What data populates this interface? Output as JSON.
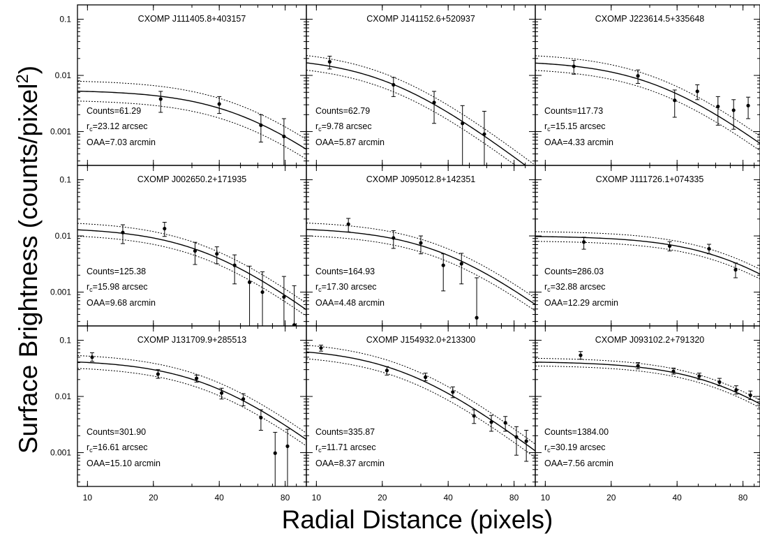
{
  "chart_data": {
    "type": "scatter",
    "ylabel": "Surface Brightness (counts/pixel",
    "ylabel_sup": "2",
    "ylabel_end": ")",
    "xlabel": "Radial Distance (pixels)",
    "x_scale": "log",
    "y_scale": "log",
    "xlim": [
      9,
      100
    ],
    "ylim": [
      0.00025,
      0.18
    ],
    "x_ticks": [
      10,
      20,
      40,
      80
    ],
    "x_tick_labels": [
      "10",
      "20",
      "40",
      "80"
    ],
    "y_ticks": [
      0.001,
      0.01,
      0.1
    ],
    "y_tick_labels": [
      "0.001",
      "0.01",
      "0.1"
    ],
    "layout": "3x3 grid",
    "panels": [
      {
        "title": "CXOMP J111405.8+403157",
        "counts_label": "Counts=61.29",
        "rc_prefix": "r",
        "rc_sub": "c",
        "rc_value": "=23.12 arcsec",
        "oaa_label": "OAA=7.03 arcmin",
        "model": {
          "s0": 0.0055,
          "rc": 50,
          "beta": 0.67,
          "band": 1.5
        },
        "points": [
          {
            "x": 21.6,
            "y": 0.0038,
            "lo": 0.0022,
            "hi": 0.0052
          },
          {
            "x": 40,
            "y": 0.0031,
            "lo": 0.0021,
            "hi": 0.0042
          },
          {
            "x": 62,
            "y": 0.0013,
            "lo": 0.00065,
            "hi": 0.002
          },
          {
            "x": 79,
            "y": 0.00082,
            "lo": 0.00025,
            "hi": 0.0017
          }
        ]
      },
      {
        "title": "CXOMP J141152.6+520937",
        "counts_label": "Counts=62.79",
        "rc_prefix": "r",
        "rc_sub": "c",
        "rc_value": "=9.78 arcsec",
        "oaa_label": "OAA=5.87 arcmin",
        "model": {
          "s0": 0.0215,
          "rc": 21.2,
          "beta": 0.67,
          "band": 1.35
        },
        "points": [
          {
            "x": 11.5,
            "y": 0.0175,
            "lo": 0.013,
            "hi": 0.022
          },
          {
            "x": 22.5,
            "y": 0.0068,
            "lo": 0.0042,
            "hi": 0.0092
          },
          {
            "x": 34.5,
            "y": 0.0033,
            "lo": 0.0014,
            "hi": 0.0052
          },
          {
            "x": 46.5,
            "y": 0.0014,
            "lo": 0.00025,
            "hi": 0.0029
          },
          {
            "x": 58.5,
            "y": 0.0009,
            "lo": 0.00025,
            "hi": 0.0023
          }
        ]
      },
      {
        "title": "CXOMP J223614.5+335648",
        "counts_label": "Counts=117.73",
        "rc_prefix": "r",
        "rc_sub": "c",
        "rc_value": "=15.15 arcsec",
        "oaa_label": "OAA=4.33 arcmin",
        "model": {
          "s0": 0.0185,
          "rc": 32.8,
          "beta": 0.67,
          "band": 1.35
        },
        "points": [
          {
            "x": 13.5,
            "y": 0.0145,
            "lo": 0.0105,
            "hi": 0.0185
          },
          {
            "x": 26.5,
            "y": 0.0098,
            "lo": 0.0072,
            "hi": 0.0125
          },
          {
            "x": 39,
            "y": 0.0036,
            "lo": 0.0018,
            "hi": 0.0055
          },
          {
            "x": 49.5,
            "y": 0.0052,
            "lo": 0.0037,
            "hi": 0.0068
          },
          {
            "x": 61.5,
            "y": 0.0028,
            "lo": 0.0013,
            "hi": 0.0042
          },
          {
            "x": 72.5,
            "y": 0.0024,
            "lo": 0.0011,
            "hi": 0.0037
          },
          {
            "x": 84.5,
            "y": 0.0029,
            "lo": 0.0017,
            "hi": 0.0041
          }
        ]
      },
      {
        "title": "CXOMP J002650.2+171935",
        "counts_label": "Counts=125.38",
        "rc_prefix": "r",
        "rc_sub": "c",
        "rc_value": "=15.98 arcsec",
        "oaa_label": "OAA=9.68 arcmin",
        "model": {
          "s0": 0.0142,
          "rc": 34.6,
          "beta": 0.67,
          "band": 1.3
        },
        "points": [
          {
            "x": 14.5,
            "y": 0.0115,
            "lo": 0.0073,
            "hi": 0.0158
          },
          {
            "x": 22.5,
            "y": 0.0135,
            "lo": 0.0098,
            "hi": 0.0175
          },
          {
            "x": 31,
            "y": 0.0054,
            "lo": 0.0031,
            "hi": 0.0077
          },
          {
            "x": 39,
            "y": 0.0048,
            "lo": 0.0032,
            "hi": 0.0064
          },
          {
            "x": 47,
            "y": 0.003,
            "lo": 0.0014,
            "hi": 0.0046
          },
          {
            "x": 55,
            "y": 0.0015,
            "lo": 0.00025,
            "hi": 0.0029
          },
          {
            "x": 63,
            "y": 0.001,
            "lo": 0.00025,
            "hi": 0.0023
          },
          {
            "x": 79,
            "y": 0.00082,
            "lo": 0.00025,
            "hi": 0.0019
          },
          {
            "x": 88,
            "y": 0.00026,
            "lo": 0.00025,
            "hi": 0.0013
          }
        ]
      },
      {
        "title": "CXOMP J095012.8+142351",
        "counts_label": "Counts=164.93",
        "rc_prefix": "r",
        "rc_sub": "c",
        "rc_value": "=17.30 arcsec",
        "oaa_label": "OAA=4.48 arcmin",
        "model": {
          "s0": 0.0142,
          "rc": 37.5,
          "beta": 0.67,
          "band": 1.3
        },
        "points": [
          {
            "x": 14,
            "y": 0.0162,
            "lo": 0.0118,
            "hi": 0.0205
          },
          {
            "x": 22.5,
            "y": 0.0092,
            "lo": 0.006,
            "hi": 0.0124
          },
          {
            "x": 30,
            "y": 0.0075,
            "lo": 0.0048,
            "hi": 0.01
          },
          {
            "x": 38,
            "y": 0.003,
            "lo": 0.00105,
            "hi": 0.0048
          },
          {
            "x": 46,
            "y": 0.0032,
            "lo": 0.0014,
            "hi": 0.0049
          },
          {
            "x": 54,
            "y": 0.00035,
            "lo": 0.00025,
            "hi": 0.0018
          }
        ]
      },
      {
        "title": "CXOMP J111726.1+074335",
        "counts_label": "Counts=286.03",
        "rc_prefix": "r",
        "rc_sub": "c",
        "rc_value": "=32.88 arcsec",
        "oaa_label": "OAA=12.29 arcmin",
        "model": {
          "s0": 0.01,
          "rc": 71,
          "beta": 0.67,
          "band": 1.22
        },
        "points": [
          {
            "x": 15,
            "y": 0.0078,
            "lo": 0.0058,
            "hi": 0.0095
          },
          {
            "x": 37,
            "y": 0.0066,
            "lo": 0.0054,
            "hi": 0.0079
          },
          {
            "x": 56,
            "y": 0.0059,
            "lo": 0.0048,
            "hi": 0.0071
          },
          {
            "x": 74,
            "y": 0.0025,
            "lo": 0.0018,
            "hi": 0.0033
          }
        ]
      },
      {
        "title": "CXOMP J131709.9+285513",
        "counts_label": "Counts=301.90",
        "rc_prefix": "r",
        "rc_sub": "c",
        "rc_value": "=16.61 arcsec",
        "oaa_label": "OAA=15.10 arcmin",
        "model": {
          "s0": 0.045,
          "rc": 36,
          "beta": 0.67,
          "band": 1.3
        },
        "points": [
          {
            "x": 10.5,
            "y": 0.05,
            "lo": 0.042,
            "hi": 0.06
          },
          {
            "x": 21,
            "y": 0.025,
            "lo": 0.021,
            "hi": 0.03
          },
          {
            "x": 31.5,
            "y": 0.021,
            "lo": 0.018,
            "hi": 0.024
          },
          {
            "x": 41,
            "y": 0.0115,
            "lo": 0.009,
            "hi": 0.014
          },
          {
            "x": 51.5,
            "y": 0.009,
            "lo": 0.0068,
            "hi": 0.0112
          },
          {
            "x": 62,
            "y": 0.0042,
            "lo": 0.0025,
            "hi": 0.0058
          },
          {
            "x": 72,
            "y": 0.00098,
            "lo": 0.00025,
            "hi": 0.0023
          },
          {
            "x": 82,
            "y": 0.0013,
            "lo": 0.00025,
            "hi": 0.0026
          }
        ]
      },
      {
        "title": "CXOMP J154932.0+213300",
        "counts_label": "Counts=335.87",
        "rc_prefix": "r",
        "rc_sub": "c",
        "rc_value": "=11.71 arcsec",
        "oaa_label": "OAA=8.37 arcmin",
        "model": {
          "s0": 0.074,
          "rc": 25.4,
          "beta": 0.67,
          "band": 1.32
        },
        "points": [
          {
            "x": 10.5,
            "y": 0.073,
            "lo": 0.064,
            "hi": 0.082
          },
          {
            "x": 21,
            "y": 0.029,
            "lo": 0.024,
            "hi": 0.034
          },
          {
            "x": 31.5,
            "y": 0.022,
            "lo": 0.019,
            "hi": 0.026
          },
          {
            "x": 42,
            "y": 0.012,
            "lo": 0.0095,
            "hi": 0.0148
          },
          {
            "x": 52.5,
            "y": 0.0045,
            "lo": 0.0033,
            "hi": 0.0058
          },
          {
            "x": 63,
            "y": 0.0035,
            "lo": 0.0024,
            "hi": 0.0046
          },
          {
            "x": 73,
            "y": 0.0034,
            "lo": 0.0024,
            "hi": 0.0044
          },
          {
            "x": 82,
            "y": 0.0019,
            "lo": 0.0009,
            "hi": 0.0029
          },
          {
            "x": 91,
            "y": 0.0016,
            "lo": 0.0007,
            "hi": 0.0025
          }
        ]
      },
      {
        "title": "CXOMP J093102.2+791320",
        "counts_label": "Counts=1384.00",
        "rc_prefix": "r",
        "rc_sub": "c",
        "rc_value": "=30.19 arcsec",
        "oaa_label": "OAA=7.56 arcmin",
        "model": {
          "s0": 0.042,
          "rc": 65,
          "beta": 0.67,
          "band": 1.17
        },
        "points": [
          {
            "x": 14.5,
            "y": 0.054,
            "lo": 0.046,
            "hi": 0.063
          },
          {
            "x": 26.5,
            "y": 0.035,
            "lo": 0.031,
            "hi": 0.04
          },
          {
            "x": 38.5,
            "y": 0.028,
            "lo": 0.025,
            "hi": 0.032
          },
          {
            "x": 50.5,
            "y": 0.023,
            "lo": 0.02,
            "hi": 0.026
          },
          {
            "x": 62.5,
            "y": 0.018,
            "lo": 0.0155,
            "hi": 0.021
          },
          {
            "x": 74.5,
            "y": 0.013,
            "lo": 0.011,
            "hi": 0.0155
          },
          {
            "x": 86.5,
            "y": 0.0105,
            "lo": 0.0088,
            "hi": 0.0125
          }
        ]
      }
    ]
  }
}
